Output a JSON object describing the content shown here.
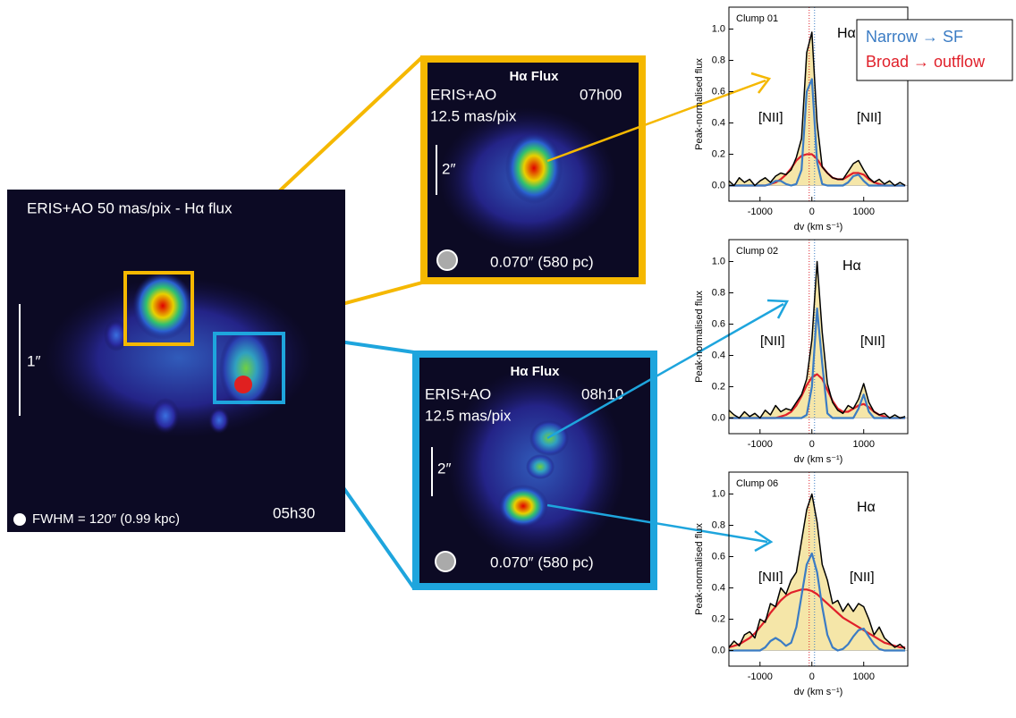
{
  "overview": {
    "title": "ERIS+AO 50 mas/pix - Hα flux",
    "scale": "1″",
    "beam": "FWHM = 120″ (0.99 kpc)",
    "time": "05h30"
  },
  "zoom_panels": [
    {
      "title": "Hα Flux",
      "instrument": "ERIS+AO",
      "time": "07h00",
      "pixscale": "12.5 mas/pix",
      "scale": "2″",
      "beam": "0.070″ (580 pc)"
    },
    {
      "title": "Hα Flux",
      "instrument": "ERIS+AO",
      "time": "08h10",
      "pixscale": "12.5 mas/pix",
      "scale": "2″",
      "beam": "0.070″ (580 pc)"
    }
  ],
  "legend": [
    {
      "text": "Narrow → SF",
      "color": "#3b7cc4"
    },
    {
      "text": "Broad → outflow",
      "color": "#e0202a"
    }
  ],
  "chart_data": [
    {
      "type": "line",
      "title": "Clump 01",
      "annotations": [
        "Hα",
        "[NII]",
        "[NII]"
      ],
      "xlabel": "dv (km s⁻¹)",
      "ylabel": "Peak-normalised flux",
      "xlim": [
        -1600,
        1850
      ],
      "ylim": [
        -0.1,
        1.14
      ],
      "xticks": [
        -1000,
        0,
        1000
      ],
      "yticks": [
        {
          "value": 0,
          "label": "0.0"
        },
        {
          "value": 0.2,
          "label": "0.2"
        },
        {
          "value": 0.4,
          "label": "0.4"
        },
        {
          "value": 0.6,
          "label": "0.6"
        },
        {
          "value": 0.8,
          "label": "0.8"
        },
        {
          "value": 1,
          "label": "1.0"
        }
      ],
      "x": [
        -1600,
        -1500,
        -1400,
        -1300,
        -1200,
        -1100,
        -1000,
        -900,
        -800,
        -700,
        -600,
        -500,
        -400,
        -300,
        -200,
        -100,
        0,
        100,
        200,
        300,
        400,
        500,
        600,
        700,
        800,
        900,
        1000,
        1100,
        1200,
        1300,
        1400,
        1500,
        1600,
        1700,
        1800
      ],
      "series": [
        {
          "color": "#000000",
          "fill": "#f5e6a8",
          "values": [
            0.03,
            0,
            0.05,
            0.02,
            0.04,
            0,
            0.03,
            0.05,
            0.02,
            0.06,
            0.08,
            0.07,
            0.1,
            0.18,
            0.3,
            0.85,
            0.98,
            0.4,
            0.12,
            0.08,
            0.05,
            0.04,
            0.04,
            0.09,
            0.14,
            0.16,
            0.1,
            0.05,
            0.02,
            0.04,
            0.01,
            0.03,
            0,
            0.02,
            0
          ]
        },
        {
          "color": "#3b7cc4",
          "values": [
            0,
            0,
            0,
            0,
            0,
            0,
            0,
            0,
            0.01,
            0.03,
            0.03,
            0.01,
            0,
            0.01,
            0.1,
            0.6,
            0.68,
            0.15,
            0.01,
            0,
            0,
            0,
            0,
            0.02,
            0.06,
            0.07,
            0.03,
            0,
            0,
            0,
            0,
            0,
            0,
            0,
            0
          ]
        },
        {
          "color": "#e0202a",
          "values": [
            0,
            0,
            0,
            0,
            0,
            0,
            0,
            0,
            0.01,
            0.02,
            0.04,
            0.07,
            0.11,
            0.16,
            0.19,
            0.2,
            0.2,
            0.17,
            0.12,
            0.08,
            0.05,
            0.04,
            0.04,
            0.06,
            0.08,
            0.08,
            0.07,
            0.04,
            0.02,
            0.01,
            0,
            0,
            0,
            0,
            0
          ]
        }
      ]
    },
    {
      "type": "line",
      "title": "Clump 02",
      "annotations": [
        "Hα",
        "[NII]",
        "[NII]"
      ],
      "xlabel": "dv (km s⁻¹)",
      "ylabel": "Peak-normalised flux",
      "xlim": [
        -1600,
        1850
      ],
      "ylim": [
        -0.1,
        1.14
      ],
      "xticks": [
        -1000,
        0,
        1000
      ],
      "yticks": [
        {
          "value": 0,
          "label": "0.0"
        },
        {
          "value": 0.2,
          "label": "0.2"
        },
        {
          "value": 0.4,
          "label": "0.4"
        },
        {
          "value": 0.6,
          "label": "0.6"
        },
        {
          "value": 0.8,
          "label": "0.8"
        },
        {
          "value": 1,
          "label": "1.0"
        }
      ],
      "x": [
        -1600,
        -1500,
        -1400,
        -1300,
        -1200,
        -1100,
        -1000,
        -900,
        -800,
        -700,
        -600,
        -500,
        -400,
        -300,
        -200,
        -100,
        0,
        100,
        200,
        300,
        400,
        500,
        600,
        700,
        800,
        900,
        1000,
        1100,
        1200,
        1300,
        1400,
        1500,
        1600,
        1700,
        1800
      ],
      "series": [
        {
          "color": "#000000",
          "fill": "#f5e6a8",
          "values": [
            0.05,
            0.02,
            0,
            0.04,
            0.01,
            0.03,
            0,
            0.05,
            0.02,
            0.08,
            0.04,
            0.06,
            0.05,
            0.1,
            0.15,
            0.25,
            0.5,
            1,
            0.55,
            0.22,
            0.1,
            0.05,
            0.03,
            0.08,
            0.06,
            0.12,
            0.22,
            0.1,
            0.04,
            0.02,
            0.03,
            0,
            0.02,
            0,
            0.01
          ]
        },
        {
          "color": "#3b7cc4",
          "values": [
            0,
            0,
            0,
            0,
            0,
            0,
            0,
            0,
            0,
            0,
            0,
            0,
            0,
            0,
            0,
            0.02,
            0.2,
            0.7,
            0.35,
            0.03,
            0,
            0,
            0,
            0,
            0,
            0.06,
            0.15,
            0.04,
            0,
            0,
            0,
            0,
            0,
            0,
            0
          ]
        },
        {
          "color": "#e0202a",
          "values": [
            0,
            0,
            0,
            0,
            0,
            0,
            0,
            0,
            0,
            0,
            0.01,
            0.02,
            0.04,
            0.08,
            0.14,
            0.21,
            0.26,
            0.28,
            0.25,
            0.18,
            0.11,
            0.06,
            0.04,
            0.04,
            0.06,
            0.08,
            0.09,
            0.07,
            0.04,
            0.02,
            0.01,
            0,
            0,
            0,
            0
          ]
        }
      ]
    },
    {
      "type": "line",
      "title": "Clump 06",
      "annotations": [
        "Hα",
        "[NII]",
        "[NII]"
      ],
      "xlabel": "dv (km s⁻¹)",
      "ylabel": "Peak-normalised flux",
      "xlim": [
        -1600,
        1850
      ],
      "ylim": [
        -0.1,
        1.14
      ],
      "xticks": [
        -1000,
        0,
        1000
      ],
      "yticks": [
        {
          "value": 0,
          "label": "0.0"
        },
        {
          "value": 0.2,
          "label": "0.2"
        },
        {
          "value": 0.4,
          "label": "0.4"
        },
        {
          "value": 0.6,
          "label": "0.6"
        },
        {
          "value": 0.8,
          "label": "0.8"
        },
        {
          "value": 1,
          "label": "1.0"
        }
      ],
      "x": [
        -1600,
        -1500,
        -1400,
        -1300,
        -1200,
        -1100,
        -1000,
        -900,
        -800,
        -700,
        -600,
        -500,
        -400,
        -300,
        -200,
        -100,
        0,
        100,
        200,
        300,
        400,
        500,
        600,
        700,
        800,
        900,
        1000,
        1100,
        1200,
        1300,
        1400,
        1500,
        1600,
        1700,
        1800
      ],
      "series": [
        {
          "color": "#000000",
          "fill": "#f5e6a8",
          "values": [
            0.02,
            0.06,
            0.03,
            0.1,
            0.12,
            0.08,
            0.2,
            0.18,
            0.3,
            0.28,
            0.4,
            0.36,
            0.45,
            0.5,
            0.7,
            0.9,
            1,
            0.82,
            0.55,
            0.45,
            0.3,
            0.32,
            0.25,
            0.3,
            0.25,
            0.3,
            0.28,
            0.2,
            0.1,
            0.15,
            0.08,
            0.05,
            0.02,
            0.04,
            0.01
          ]
        },
        {
          "color": "#3b7cc4",
          "values": [
            0,
            0,
            0,
            0,
            0,
            0,
            0,
            0.02,
            0.06,
            0.08,
            0.06,
            0.03,
            0.05,
            0.15,
            0.35,
            0.55,
            0.62,
            0.5,
            0.28,
            0.1,
            0.02,
            0,
            0.01,
            0.04,
            0.09,
            0.13,
            0.14,
            0.09,
            0.04,
            0.01,
            0,
            0,
            0,
            0,
            0
          ]
        },
        {
          "color": "#e0202a",
          "values": [
            0.02,
            0.03,
            0.04,
            0.06,
            0.08,
            0.11,
            0.15,
            0.19,
            0.24,
            0.28,
            0.32,
            0.35,
            0.37,
            0.38,
            0.39,
            0.39,
            0.38,
            0.36,
            0.33,
            0.3,
            0.27,
            0.24,
            0.21,
            0.19,
            0.17,
            0.15,
            0.13,
            0.11,
            0.09,
            0.07,
            0.05,
            0.04,
            0.03,
            0.02,
            0.02
          ]
        }
      ]
    }
  ]
}
